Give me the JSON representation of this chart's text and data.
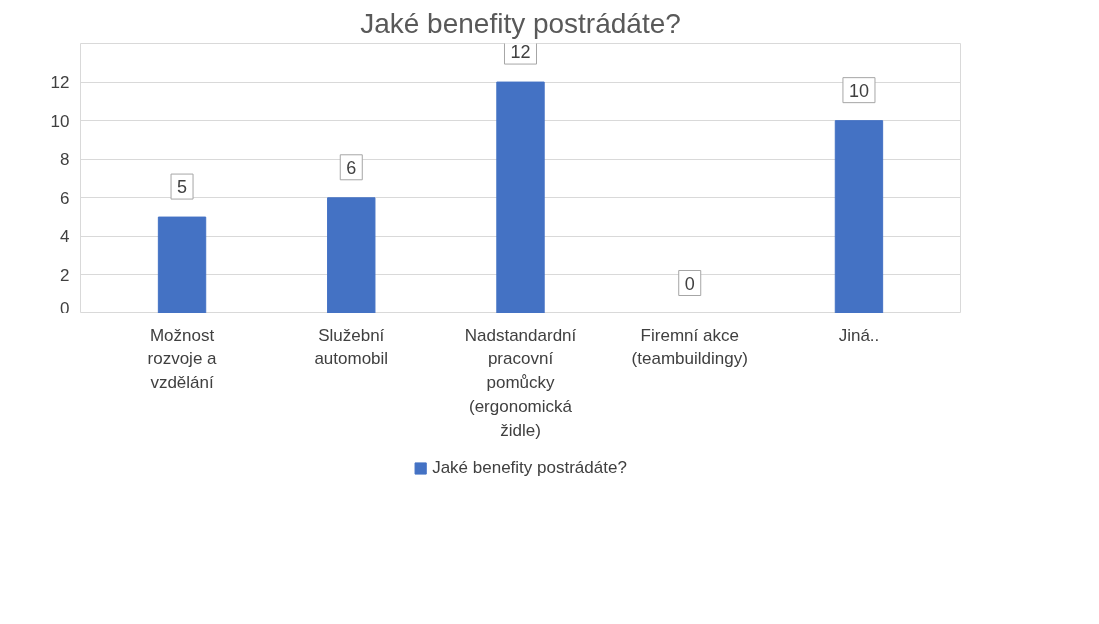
{
  "chart_data": {
    "type": "bar",
    "title": "Jaké benefity postrádáte?",
    "categories": [
      "Možnost rozvoje a vzdělání",
      "Služební automobil",
      "Nadstandardní pracovní pomůcky (ergonomická židle)",
      "Firemní akce (teambuildingy)",
      "Jiná.."
    ],
    "series": [
      {
        "name": "Jaké benefity postrádáte?",
        "color": "#4472c4",
        "values": [
          5,
          6,
          12,
          0,
          10
        ]
      }
    ],
    "ylim": [
      0,
      14
    ],
    "yticks": [
      0,
      2,
      4,
      6,
      8,
      10,
      12,
      {
        "value": 14,
        "label": null
      }
    ],
    "grid": "y",
    "legend": "bottom",
    "data_labels": true
  }
}
